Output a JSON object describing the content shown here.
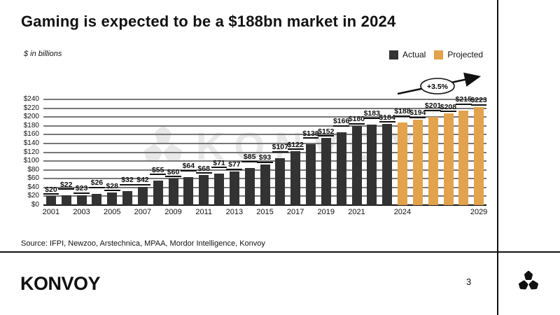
{
  "header": {
    "title": "Gaming is expected to be a $188bn market in 2024",
    "subtitle": "$ in billions"
  },
  "legend": {
    "actual_label": "Actual",
    "projected_label": "Projected"
  },
  "watermark": {
    "text": "KONVOY"
  },
  "source": {
    "text": "Source: IFPI, Newzoo, Arstechnica, MPAA, Mordor Intelligence, Konvoy"
  },
  "footer": {
    "brand": "KONVOY",
    "page_number": "3"
  },
  "colors": {
    "actual": "#333333",
    "projected": "#e3a24c",
    "gridline": "#787878",
    "watermark": "#e8e8e8"
  },
  "chart_data": {
    "type": "bar",
    "title": "Gaming is expected to be a $188bn market in 2024",
    "ylabel": "$ in billions",
    "x": [
      2001,
      2002,
      2003,
      2004,
      2005,
      2006,
      2007,
      2008,
      2009,
      2010,
      2011,
      2012,
      2013,
      2014,
      2015,
      2016,
      2017,
      2018,
      2019,
      2020,
      2021,
      2022,
      2023,
      2024,
      2025,
      2026,
      2027,
      2028,
      2029
    ],
    "values": [
      20,
      22,
      23,
      26,
      28,
      32,
      42,
      55,
      60,
      64,
      68,
      71,
      77,
      85,
      93,
      107,
      122,
      138,
      152,
      166,
      180,
      183,
      184,
      188,
      194,
      201,
      208,
      215,
      223
    ],
    "series": [
      {
        "name": "Actual",
        "year_range": [
          2001,
          2023
        ]
      },
      {
        "name": "Projected",
        "year_range": [
          2024,
          2029
        ]
      }
    ],
    "projected_start_year": 2024,
    "ylim": [
      0,
      240
    ],
    "ytick_step": 20,
    "ytick_prefix": "$",
    "bar_label_prefix": "$",
    "xtick_labels": [
      "2001",
      "2003",
      "2005",
      "2007",
      "2009",
      "2011",
      "2013",
      "2015",
      "2017",
      "2019",
      "2021",
      "2024",
      "2029"
    ],
    "annotation": "+3.5%",
    "grid": true,
    "legend_position": "top-right"
  }
}
